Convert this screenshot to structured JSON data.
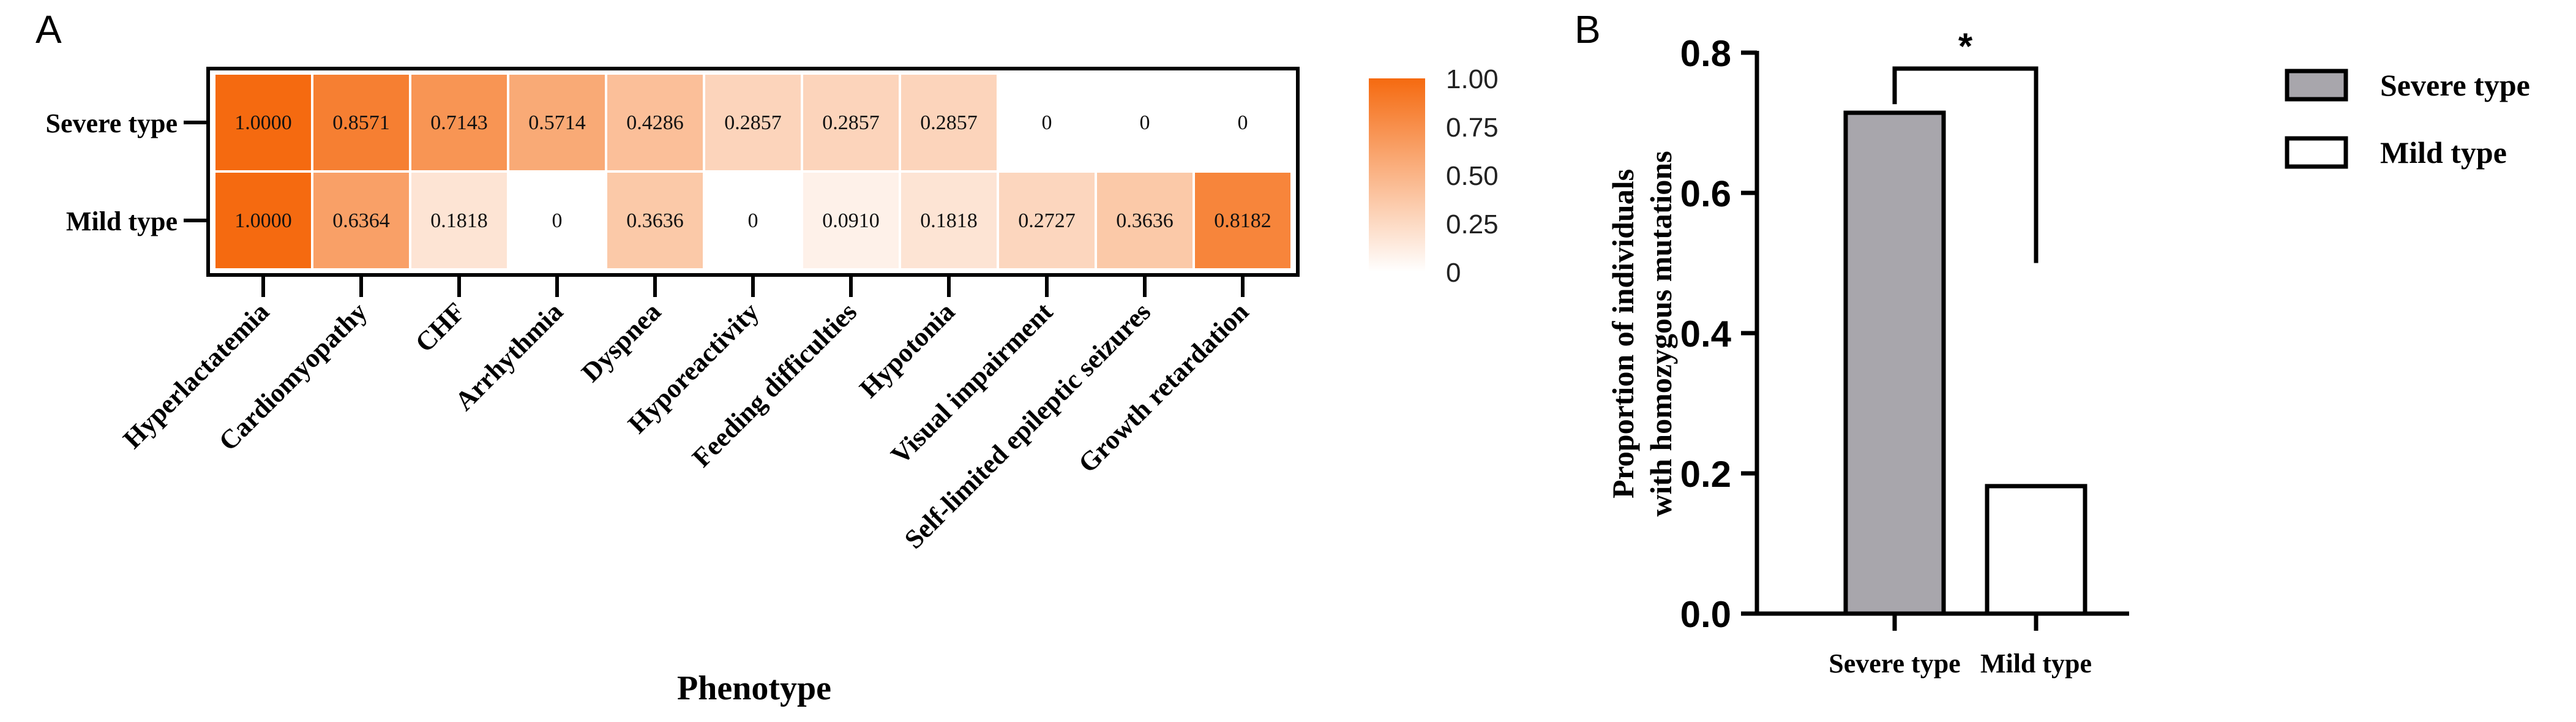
{
  "panels": {
    "a_label": "A",
    "b_label": "B"
  },
  "chart_data": [
    {
      "type": "heatmap",
      "panel": "A",
      "title": "",
      "xlabel": "Phenotype",
      "ylabel": "",
      "rows": [
        "Severe type",
        "Mild type"
      ],
      "columns": [
        "Hyperlactatemia",
        "Cardiomyopathy",
        "CHF",
        "Arrhythmia",
        "Dyspnea",
        "Hyporeactivity",
        "Feeding difficulties",
        "Hypotonia",
        "Visual impairment",
        "Self-limited epileptic seizures",
        "Growth retardation"
      ],
      "values": [
        [
          1.0,
          0.8571,
          0.7143,
          0.5714,
          0.4286,
          0.2857,
          0.2857,
          0.2857,
          0,
          0,
          0
        ],
        [
          1.0,
          0.6364,
          0.1818,
          0,
          0.3636,
          0,
          0.091,
          0.1818,
          0.2727,
          0.3636,
          0.8182
        ]
      ],
      "cell_labels": [
        [
          "1.0000",
          "0.8571",
          "0.7143",
          "0.5714",
          "0.4286",
          "0.2857",
          "0.2857",
          "0.2857",
          "0",
          "0",
          "0"
        ],
        [
          "1.0000",
          "0.6364",
          "0.1818",
          "0",
          "0.3636",
          "0",
          "0.0910",
          "0.1818",
          "0.2727",
          "0.3636",
          "0.8182"
        ]
      ],
      "colorbar": {
        "range": [
          0,
          1
        ],
        "ticks": [
          1.0,
          0.75,
          0.5,
          0.25,
          0
        ],
        "tick_labels": [
          "1.00",
          "0.75",
          "0.50",
          "0.25",
          "0"
        ],
        "color_low": "#ffffff",
        "color_high": "#f56a10"
      }
    },
    {
      "type": "bar",
      "panel": "B",
      "title": "",
      "xlabel": "",
      "ylabel": "Proportion of individuals with homozygous mutations",
      "ylabel_lines": [
        "Proportion of individuals",
        "with homozygous mutations"
      ],
      "categories": [
        "Severe type",
        "Mild type"
      ],
      "values": [
        0.7143,
        0.1818
      ],
      "bar_colors": [
        "#a8a6ac",
        "#ffffff"
      ],
      "ylim": [
        0,
        0.8
      ],
      "yticks": [
        0.0,
        0.2,
        0.4,
        0.6,
        0.8
      ],
      "ytick_labels": [
        "0.0",
        "0.2",
        "0.4",
        "0.6",
        "0.8"
      ],
      "significance": {
        "label": "*",
        "between": [
          "Severe type",
          "Mild type"
        ]
      },
      "legend": {
        "placement": "right",
        "entries": [
          {
            "name": "Severe type",
            "color": "#a8a6ac"
          },
          {
            "name": "Mild type",
            "color": "#ffffff"
          }
        ]
      }
    }
  ]
}
